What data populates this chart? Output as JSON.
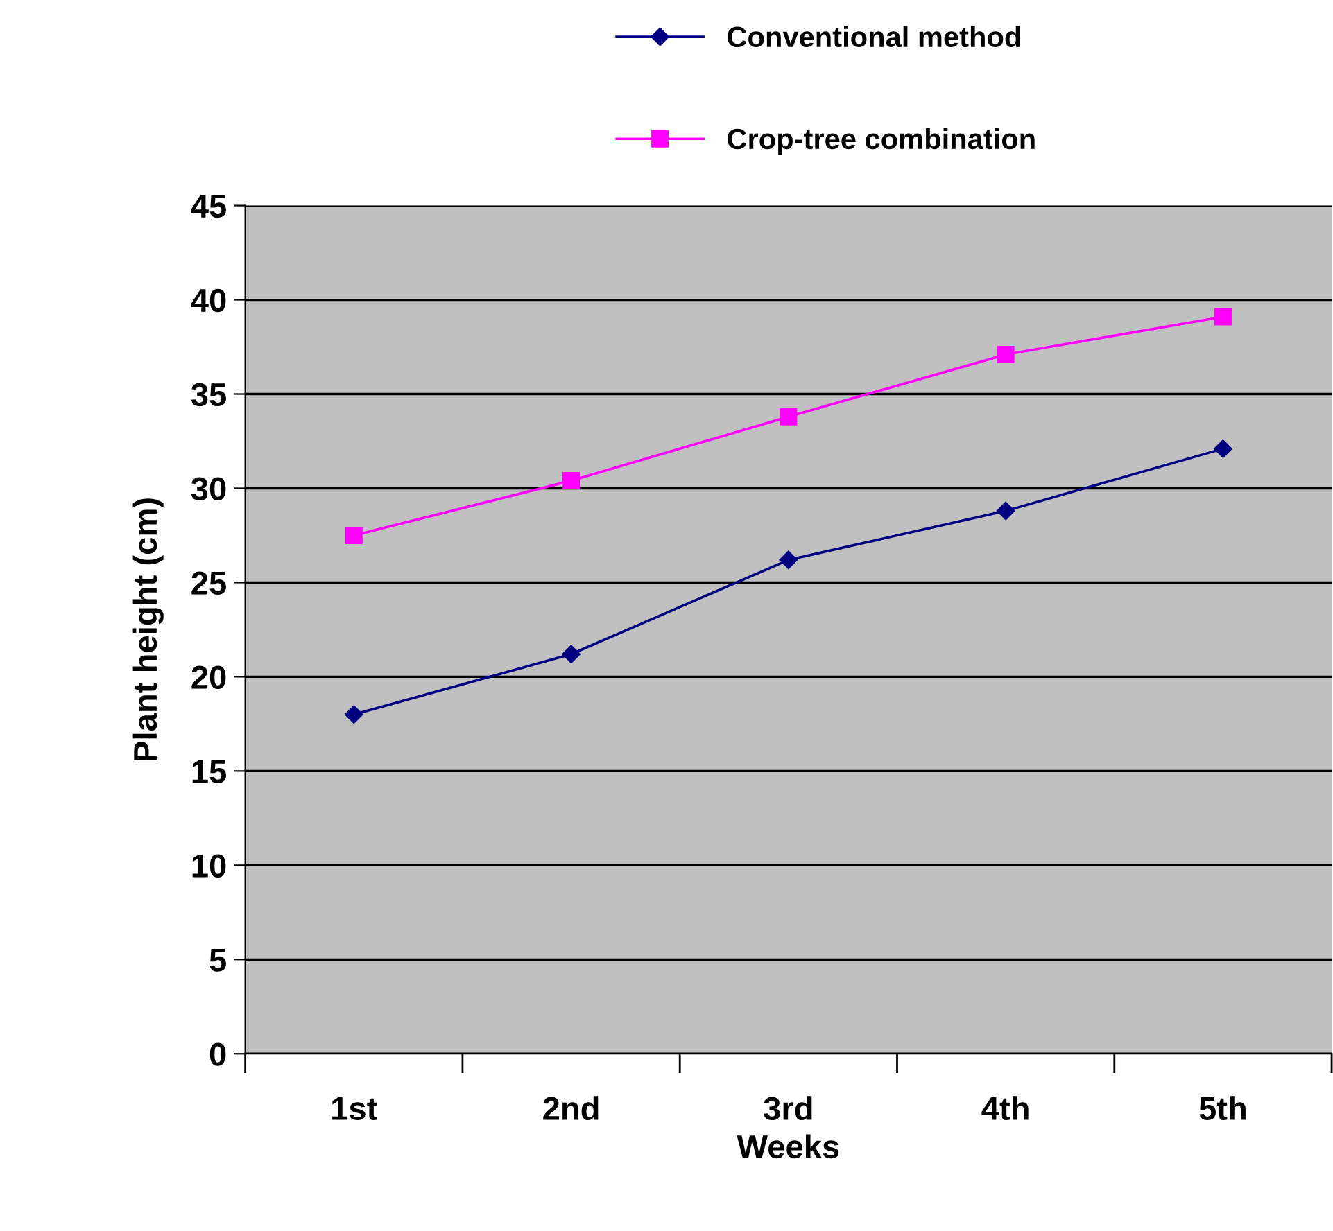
{
  "chart_data": {
    "type": "line",
    "xlabel": "Weeks",
    "ylabel": "Plant height (cm)",
    "categories": [
      "1st",
      "2nd",
      "3rd",
      "4th",
      "5th"
    ],
    "series": [
      {
        "name": "Conventional method",
        "color": "#000080",
        "marker": "diamond",
        "values": [
          18.0,
          21.2,
          26.2,
          28.8,
          32.1
        ]
      },
      {
        "name": "Crop-tree combination",
        "color": "#ff00ff",
        "marker": "square",
        "values": [
          27.5,
          30.4,
          33.8,
          37.1,
          39.1
        ]
      }
    ],
    "ylim": [
      0,
      45
    ],
    "yticks": [
      0,
      5,
      10,
      15,
      20,
      25,
      30,
      35,
      40,
      45
    ],
    "grid": "y",
    "legend": "top",
    "line_style": "solid"
  }
}
